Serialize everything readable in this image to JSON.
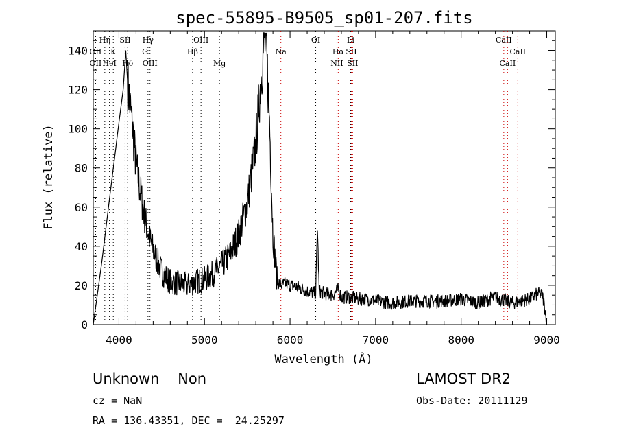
{
  "chart_data": {
    "type": "line",
    "title": "spec-55895-B9505_sp01-207.fits",
    "xlabel": "Wavelength (Å)",
    "ylabel": "Flux (relative)",
    "xlim": [
      3700,
      9100
    ],
    "ylim": [
      0,
      150
    ],
    "x_ticks": [
      4000,
      5000,
      6000,
      7000,
      8000,
      9000
    ],
    "y_ticks": [
      0,
      20,
      40,
      60,
      80,
      100,
      120,
      140
    ],
    "grid": false,
    "series": [
      {
        "x": [
          3700,
          3800,
          3900,
          4000,
          4050,
          4080,
          4100,
          4130,
          4160,
          4200,
          4250,
          4300,
          4350,
          4400,
          4500,
          4600,
          4700,
          4800,
          4900,
          5000,
          5100,
          5200,
          5300,
          5400,
          5500,
          5600,
          5650,
          5700,
          5730,
          5760,
          5800,
          5850,
          5900,
          5950,
          6000,
          6100,
          6200,
          6300,
          6320,
          6340,
          6400,
          6500,
          6563,
          6600,
          6700,
          6800,
          6900,
          7000,
          7200,
          7400,
          7600,
          7800,
          8000,
          8200,
          8400,
          8600,
          8800,
          8900,
          8950,
          9000
        ],
        "y": [
          0,
          32,
          68,
          103,
          120,
          140,
          125,
          112,
          100,
          82,
          68,
          55,
          45,
          38,
          27,
          22,
          21,
          20,
          22,
          23,
          26,
          30,
          36,
          46,
          62,
          92,
          120,
          146,
          135,
          105,
          46,
          22,
          20,
          21,
          20,
          19,
          17,
          16,
          50,
          17,
          16,
          15,
          18,
          14,
          14,
          13,
          13,
          12,
          11,
          12,
          12,
          12,
          13,
          11,
          14,
          11,
          13,
          16,
          15,
          3
        ]
      }
    ],
    "lines": [
      {
        "label": "OII",
        "x": 3727,
        "color": "#000000",
        "row": 2
      },
      {
        "label": "OII",
        "x": 3727,
        "color": "#000000",
        "row": 3
      },
      {
        "label": "Hη",
        "x": 3835,
        "color": "#000000",
        "row": 1
      },
      {
        "label": "HeI",
        "x": 3889,
        "color": "#000000",
        "row": 3
      },
      {
        "label": "K",
        "x": 3934,
        "color": "#000000",
        "row": 2
      },
      {
        "label": "SII",
        "x": 4072,
        "color": "#000000",
        "row": 1
      },
      {
        "label": "Hδ",
        "x": 4102,
        "color": "#000000",
        "row": 3
      },
      {
        "label": "Hγ",
        "x": 4340,
        "color": "#000000",
        "row": 1
      },
      {
        "label": "G",
        "x": 4305,
        "color": "#000000",
        "row": 2
      },
      {
        "label": "OIII",
        "x": 4363,
        "color": "#000000",
        "row": 3
      },
      {
        "label": "Hβ",
        "x": 4861,
        "color": "#000000",
        "row": 2
      },
      {
        "label": "OIII",
        "x": 4959,
        "color": "#000000",
        "row": 1
      },
      {
        "label": "Mg",
        "x": 5175,
        "color": "#000000",
        "row": 3
      },
      {
        "label": "Na",
        "x": 5893,
        "color": "#cc0000",
        "row": 2
      },
      {
        "label": "OI",
        "x": 6300,
        "color": "#000000",
        "row": 1
      },
      {
        "label": "Hα",
        "x": 6563,
        "color": "#cc0000",
        "row": 2
      },
      {
        "label": "NII",
        "x": 6548,
        "color": "#000000",
        "row": 3
      },
      {
        "label": "Li",
        "x": 6708,
        "color": "#000000",
        "row": 1
      },
      {
        "label": "SII",
        "x": 6716,
        "color": "#cc0000",
        "row": 2
      },
      {
        "label": "SII",
        "x": 6731,
        "color": "#cc0000",
        "row": 3
      },
      {
        "label": "CaII",
        "x": 8498,
        "color": "#cc0000",
        "row": 1
      },
      {
        "label": "CaII",
        "x": 8542,
        "color": "#cc0000",
        "row": 3
      },
      {
        "label": "CaII",
        "x": 8662,
        "color": "#cc0000",
        "row": 2
      }
    ]
  },
  "info": {
    "class_text": "Unknown    Non",
    "survey": "LAMOST DR2",
    "cz": "cz = NaN",
    "obs_date": "Obs-Date: 20111129",
    "coords": "RA = 136.43351, DEC =  24.25297"
  }
}
